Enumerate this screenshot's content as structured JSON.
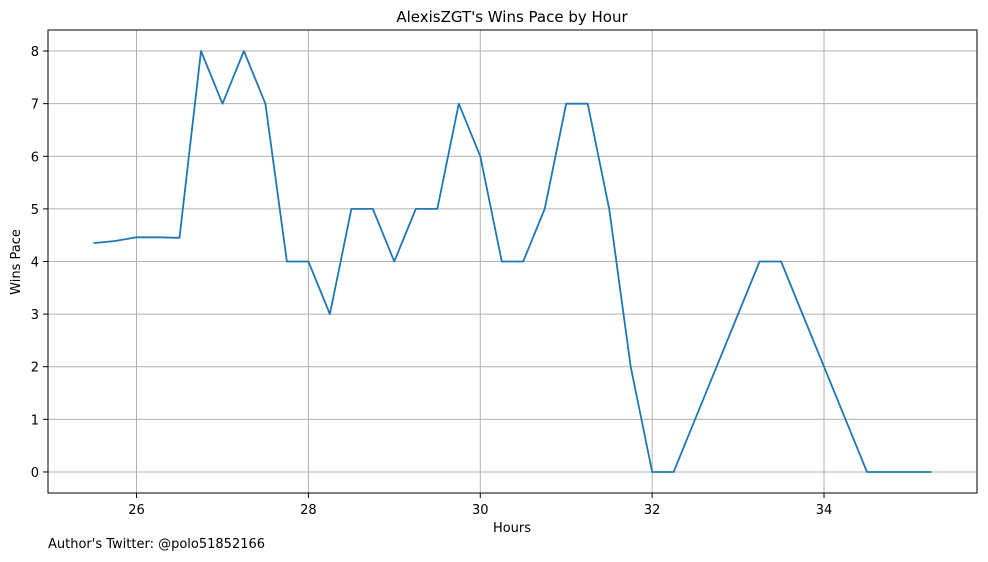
{
  "chart_data": {
    "type": "line",
    "title": "AlexisZGT's Wins Pace by Hour",
    "xlabel": "Hours",
    "ylabel": "Wins Pace",
    "xlim": [
      24.97,
      35.78
    ],
    "ylim": [
      -0.4,
      8.4
    ],
    "xticks": [
      26,
      28,
      30,
      32,
      34
    ],
    "yticks": [
      0,
      1,
      2,
      3,
      4,
      5,
      6,
      7,
      8
    ],
    "grid": true,
    "line_color": "#1f77b4",
    "series": [
      {
        "x": [
          25.5,
          25.75,
          26.0,
          26.25,
          26.5,
          26.75,
          27.0,
          27.25,
          27.5,
          27.75,
          28.0,
          28.25,
          28.5,
          28.75,
          29.0,
          29.25,
          29.5,
          29.75,
          30.0,
          30.25,
          30.5,
          30.75,
          31.0,
          31.25,
          31.5,
          31.75,
          32.0,
          32.25,
          32.5,
          32.75,
          33.0,
          33.25,
          33.5,
          33.75,
          34.0,
          34.25,
          34.5,
          34.75,
          35.0,
          35.25
        ],
        "y": [
          4.35,
          4.39,
          4.46,
          4.46,
          4.45,
          8,
          7,
          8,
          7,
          4,
          4,
          3,
          5,
          5,
          4,
          5,
          5,
          7,
          6,
          4,
          4,
          5,
          7,
          7,
          5,
          2,
          0,
          0,
          1,
          2,
          3,
          4,
          4,
          3,
          2,
          1,
          0,
          0,
          0,
          0
        ]
      }
    ]
  },
  "footnote": "Author's Twitter: @polo51852166"
}
